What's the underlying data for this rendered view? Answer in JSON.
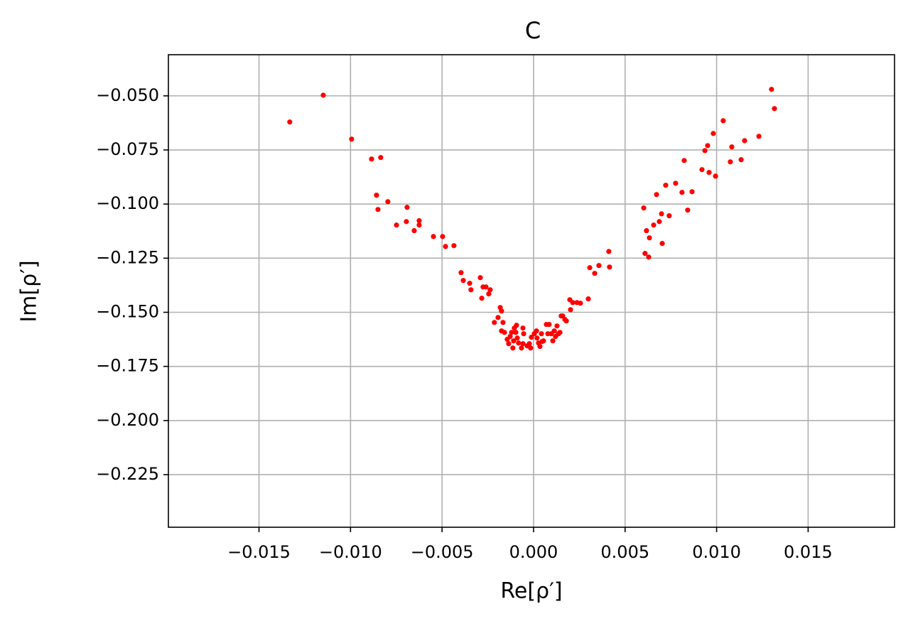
{
  "chart_data": {
    "type": "scatter",
    "title": "C",
    "xlabel": "Re[ρ′]",
    "ylabel": "Im[ρ′]",
    "color": "#ff0000",
    "grid": true,
    "xlim": [
      -0.01995,
      0.01972
    ],
    "ylim": [
      -0.2493,
      -0.031
    ],
    "xticks": [
      {
        "value": -0.015,
        "label": "−0.015"
      },
      {
        "value": -0.01,
        "label": "−0.010"
      },
      {
        "value": -0.005,
        "label": "−0.005"
      },
      {
        "value": 0,
        "label": "0.000"
      },
      {
        "value": 0.005,
        "label": "0.005"
      },
      {
        "value": 0.01,
        "label": "0.010"
      },
      {
        "value": 0.015,
        "label": "0.015"
      }
    ],
    "yticks": [
      {
        "value": -0.05,
        "label": "−0.050"
      },
      {
        "value": -0.075,
        "label": "−0.075"
      },
      {
        "value": -0.1,
        "label": "−0.100"
      },
      {
        "value": -0.125,
        "label": "−0.125"
      },
      {
        "value": -0.15,
        "label": "−0.150"
      },
      {
        "value": -0.175,
        "label": "−0.175"
      },
      {
        "value": -0.2,
        "label": "−0.200"
      },
      {
        "value": -0.225,
        "label": "−0.225"
      }
    ],
    "x": [
      -0.01332,
      -0.01149,
      -0.00994,
      -0.00885,
      -0.00835,
      -0.00858,
      -0.0085,
      -0.00796,
      -0.00749,
      -0.00695,
      -0.00691,
      -0.00652,
      -0.00625,
      -0.00625,
      -0.00547,
      -0.00497,
      -0.00481,
      -0.00435,
      -0.00396,
      -0.00384,
      -0.00349,
      -0.00342,
      -0.00291,
      -0.00276,
      -0.00283,
      -0.0026,
      -0.00245,
      -0.00237,
      -0.00214,
      -0.00194,
      -0.00182,
      -0.00175,
      -0.00175,
      -0.00167,
      -0.00159,
      -0.00144,
      -0.00136,
      -0.00128,
      -0.0012,
      -0.00113,
      -0.00109,
      -0.00105,
      -0.00097,
      -0.00093,
      -0.00089,
      -0.00082,
      -0.00066,
      -0.00058,
      -0.00058,
      -0.00054,
      -0.00035,
      -0.00023,
      -0.00016,
      -0.00012,
      4e-05,
      0.00016,
      0.00019,
      0.00027,
      0.00035,
      0.00043,
      0.00047,
      0.00054,
      0.0007,
      0.00078,
      0.00085,
      0.00097,
      0.00105,
      0.00113,
      0.0012,
      0.00128,
      0.00136,
      0.00144,
      0.00151,
      0.00159,
      0.00171,
      0.00179,
      0.00198,
      0.00202,
      0.00214,
      0.00237,
      0.00256,
      0.00299,
      0.00307,
      0.00334,
      0.00357,
      0.00411,
      0.00415,
      0.00602,
      0.00609,
      0.00617,
      0.00633,
      0.00629,
      0.00656,
      0.00672,
      0.00687,
      0.00699,
      0.00703,
      0.00722,
      0.00741,
      0.00776,
      0.00811,
      0.00823,
      0.00842,
      0.00866,
      0.0092,
      0.00936,
      0.00951,
      0.00959,
      0.00982,
      0.00994,
      0.01036,
      0.01075,
      0.01083,
      0.01134,
      0.01153,
      0.01231,
      0.013,
      0.01316
    ],
    "values": [
      -0.0621,
      -0.0497,
      -0.07,
      -0.0792,
      -0.0785,
      -0.0959,
      -0.1025,
      -0.0989,
      -0.1097,
      -0.1081,
      -0.1015,
      -0.1123,
      -0.1077,
      -0.1097,
      -0.115,
      -0.115,
      -0.1196,
      -0.1192,
      -0.1317,
      -0.1353,
      -0.1366,
      -0.1396,
      -0.134,
      -0.1383,
      -0.1435,
      -0.1383,
      -0.1415,
      -0.1396,
      -0.1547,
      -0.1524,
      -0.1478,
      -0.1494,
      -0.1586,
      -0.1547,
      -0.1593,
      -0.1625,
      -0.1645,
      -0.1612,
      -0.1593,
      -0.1665,
      -0.1632,
      -0.1573,
      -0.1593,
      -0.156,
      -0.1619,
      -0.1642,
      -0.1665,
      -0.1645,
      -0.1573,
      -0.1599,
      -0.1655,
      -0.1645,
      -0.1665,
      -0.1615,
      -0.1599,
      -0.1586,
      -0.1619,
      -0.1642,
      -0.1658,
      -0.1599,
      -0.1635,
      -0.1632,
      -0.1556,
      -0.1599,
      -0.1556,
      -0.1599,
      -0.1632,
      -0.1586,
      -0.1612,
      -0.1563,
      -0.1599,
      -0.1593,
      -0.1517,
      -0.1517,
      -0.1533,
      -0.154,
      -0.1442,
      -0.1488,
      -0.1455,
      -0.1455,
      -0.1458,
      -0.1438,
      -0.1294,
      -0.132,
      -0.1284,
      -0.1219,
      -0.1291,
      -0.1018,
      -0.1228,
      -0.1123,
      -0.1156,
      -0.1245,
      -0.1097,
      -0.0956,
      -0.1081,
      -0.1045,
      -0.1182,
      -0.0913,
      -0.1054,
      -0.0904,
      -0.0946,
      -0.0799,
      -0.1028,
      -0.0943,
      -0.0841,
      -0.0753,
      -0.073,
      -0.0854,
      -0.0674,
      -0.0871,
      -0.0615,
      -0.0805,
      -0.0736,
      -0.0795,
      -0.0707,
      -0.0687,
      -0.047,
      -0.0559
    ]
  }
}
